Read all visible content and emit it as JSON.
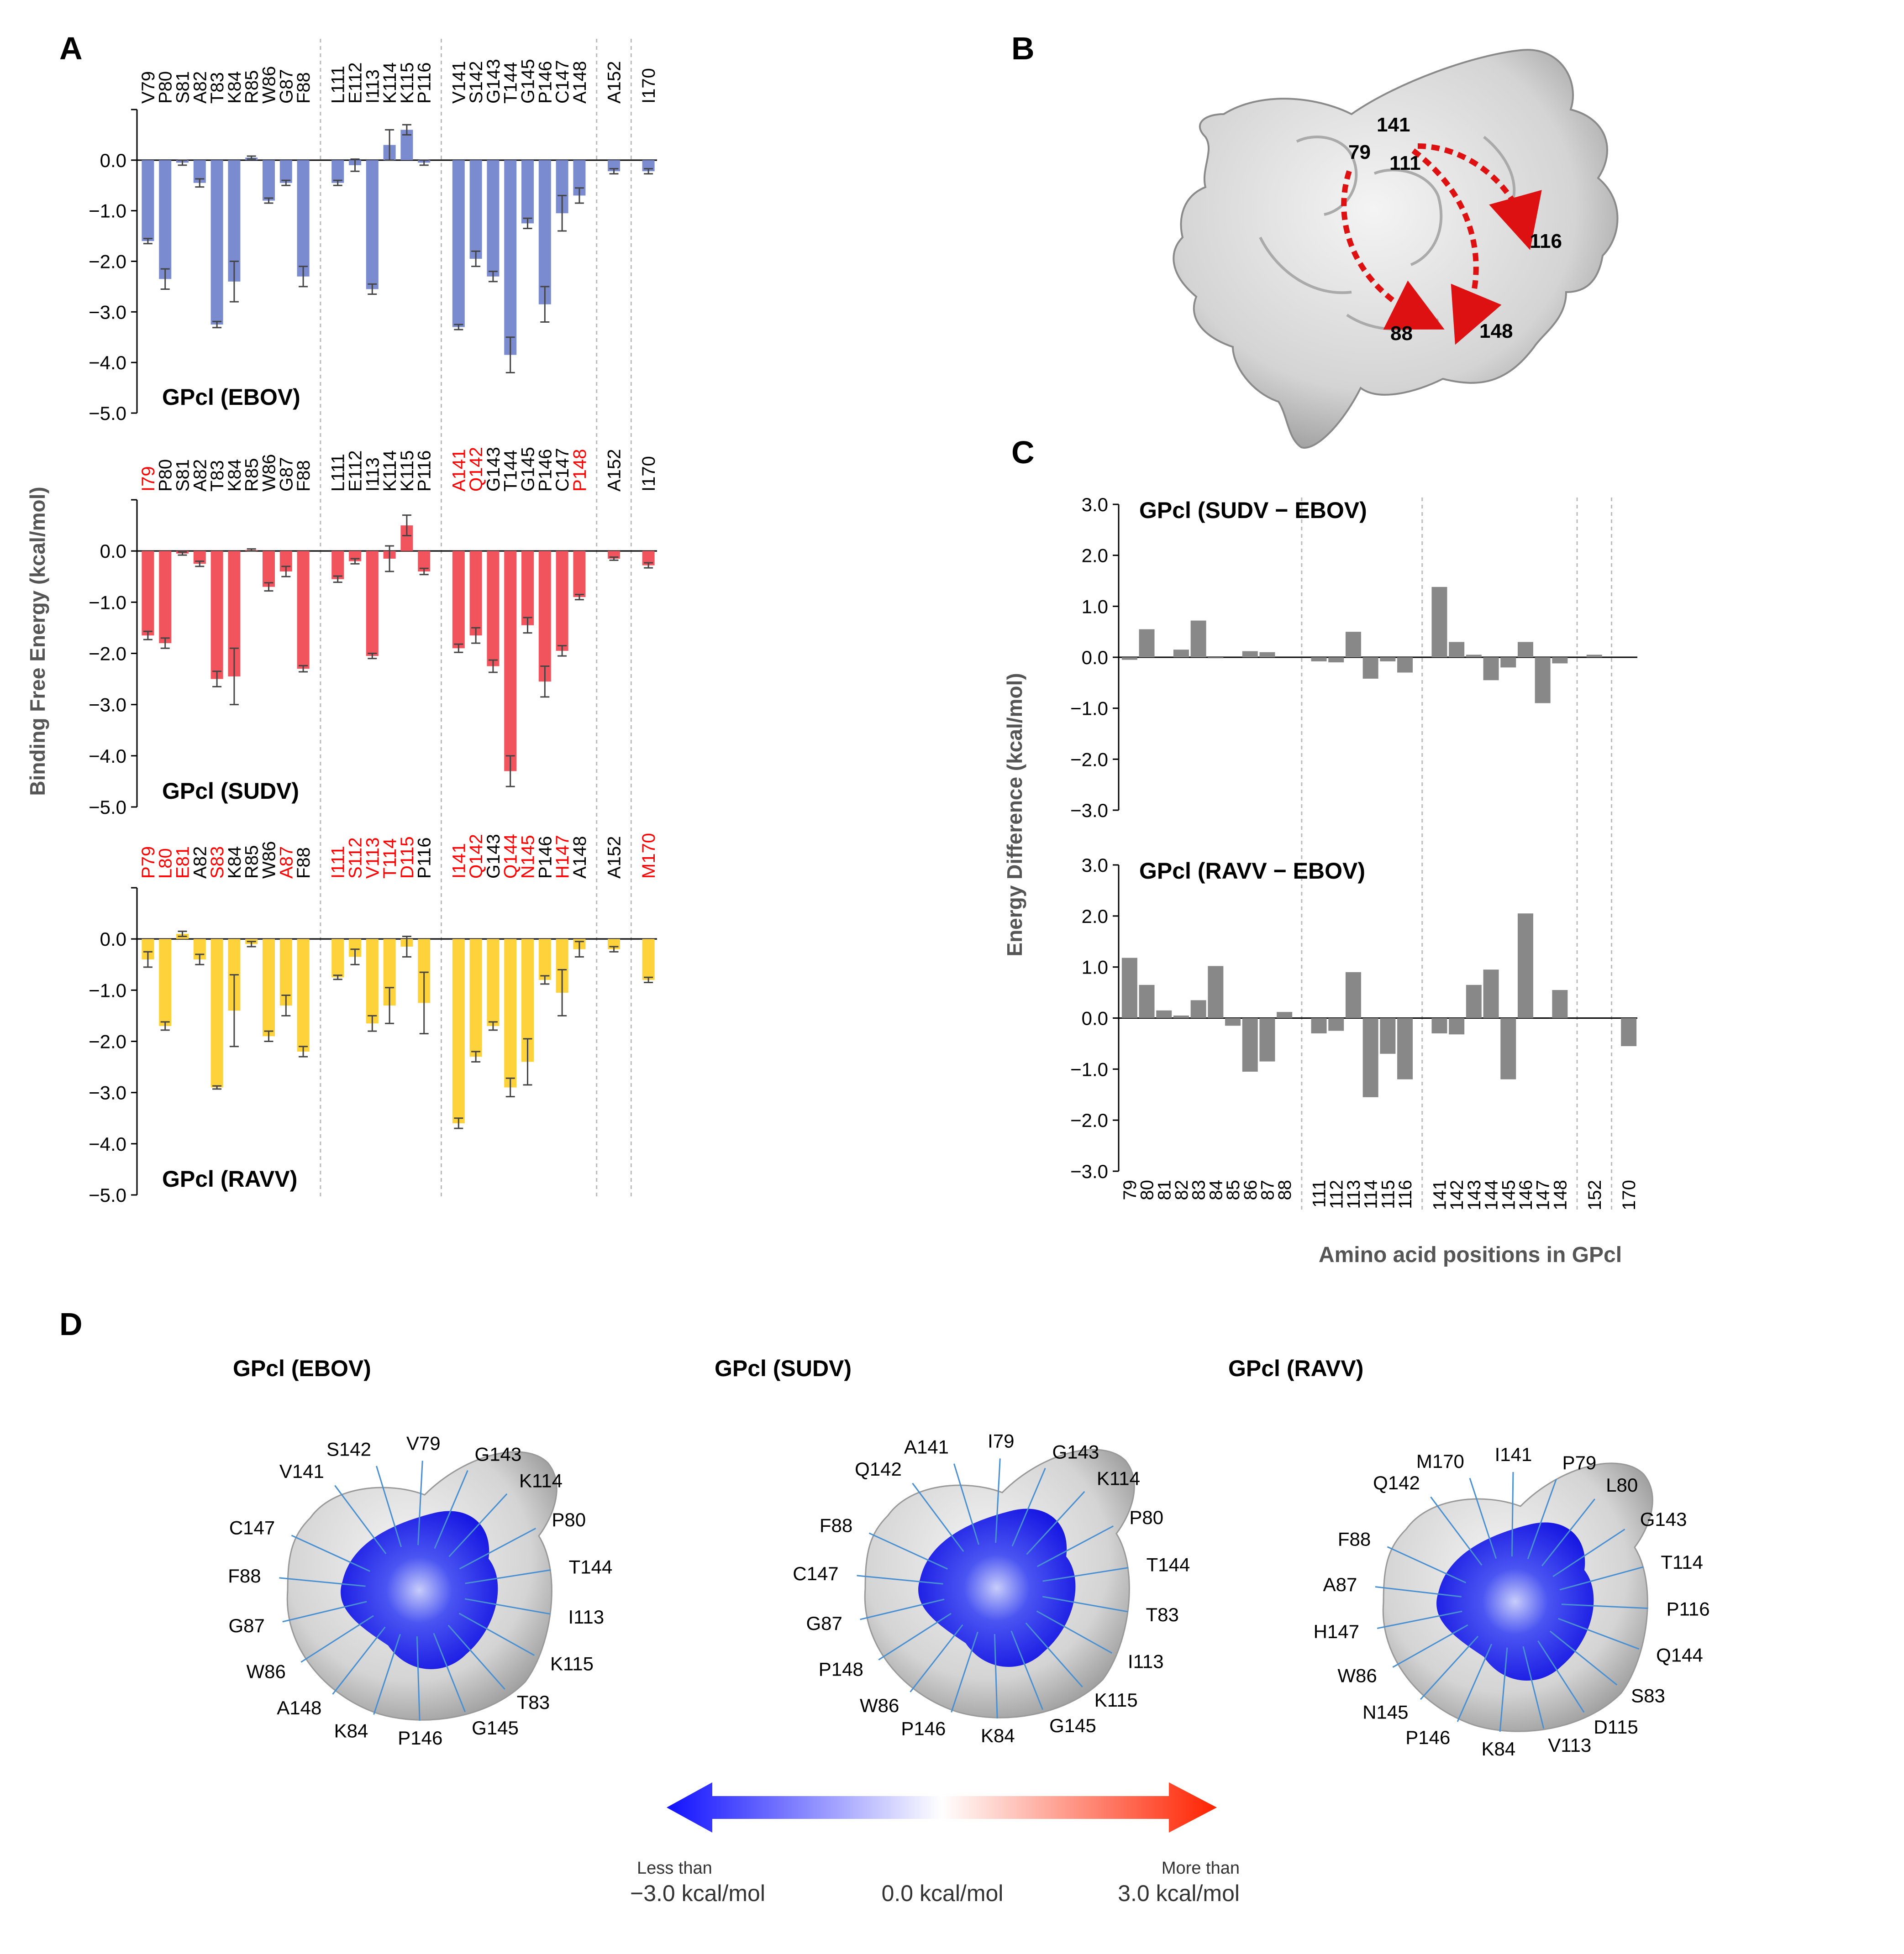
{
  "panels": {
    "A": "A",
    "B": "B",
    "C": "C",
    "D": "D"
  },
  "colors": {
    "ebov": "#7b8bd0",
    "sudv": "#f2545e",
    "ravv": "#fdd23a",
    "diff": "#888888",
    "mutated_label": "#ff0000",
    "normal_label": "#000000"
  },
  "chart_data": [
    {
      "type": "bar",
      "panel": "A",
      "ylabel": "Binding Free Energy (kcal/mol)",
      "ylim": [
        -5.0,
        1.0
      ],
      "yticks": [
        "0.0",
        "−1.0",
        "−2.0",
        "−3.0",
        "−4.0",
        "−5.0"
      ],
      "group_breaks_after": [
        8,
        14,
        22,
        23
      ],
      "series": [
        {
          "name": "GPcl (EBOV)",
          "color": "#7b8bd0",
          "labels": [
            "V79",
            "P80",
            "S81",
            "A82",
            "T83",
            "K84",
            "R85",
            "W86",
            "G87",
            "F88",
            "L111",
            "E112",
            "I113",
            "K114",
            "K115",
            "P116",
            "V141",
            "S142",
            "G143",
            "T144",
            "G145",
            "P146",
            "C147",
            "A148",
            "A152",
            "I170"
          ],
          "label_red": [
            false,
            false,
            false,
            false,
            false,
            false,
            false,
            false,
            false,
            false,
            false,
            false,
            false,
            false,
            false,
            false,
            false,
            false,
            false,
            false,
            false,
            false,
            false,
            false,
            false,
            false
          ],
          "values": [
            -1.6,
            -2.35,
            -0.05,
            -0.45,
            -3.25,
            -2.4,
            0.05,
            -0.8,
            -0.45,
            -2.3,
            -0.45,
            -0.1,
            -2.55,
            0.3,
            0.6,
            -0.05,
            -3.3,
            -1.95,
            -2.3,
            -3.85,
            -1.25,
            -2.85,
            -1.05,
            -0.7,
            -0.22,
            -0.22
          ],
          "errors": [
            0.05,
            0.2,
            0.05,
            0.08,
            0.06,
            0.4,
            0.03,
            0.05,
            0.05,
            0.2,
            0.05,
            0.12,
            0.1,
            0.3,
            0.1,
            0.05,
            0.05,
            0.15,
            0.1,
            0.35,
            0.1,
            0.35,
            0.35,
            0.15,
            0.05,
            0.05
          ]
        },
        {
          "name": "GPcl (SUDV)",
          "color": "#f2545e",
          "labels": [
            "I79",
            "P80",
            "S81",
            "A82",
            "T83",
            "K84",
            "R85",
            "W86",
            "G87",
            "F88",
            "L111",
            "E112",
            "I113",
            "K114",
            "K115",
            "P116",
            "A141",
            "Q142",
            "G143",
            "T144",
            "G145",
            "P146",
            "C147",
            "P148",
            "A152",
            "I170"
          ],
          "label_red": [
            true,
            false,
            false,
            false,
            false,
            false,
            false,
            false,
            false,
            false,
            false,
            false,
            false,
            false,
            false,
            false,
            true,
            true,
            false,
            false,
            false,
            false,
            false,
            true,
            false,
            false
          ],
          "values": [
            -1.65,
            -1.8,
            -0.05,
            -0.25,
            -2.5,
            -2.45,
            0.02,
            -0.7,
            -0.4,
            -2.3,
            -0.55,
            -0.2,
            -2.05,
            -0.15,
            0.5,
            -0.4,
            -1.9,
            -1.65,
            -2.25,
            -4.3,
            -1.45,
            -2.55,
            -1.95,
            -0.9,
            -0.15,
            -0.28
          ],
          "errors": [
            0.08,
            0.1,
            0.03,
            0.05,
            0.15,
            0.55,
            0.02,
            0.08,
            0.1,
            0.06,
            0.06,
            0.05,
            0.05,
            0.25,
            0.2,
            0.06,
            0.08,
            0.15,
            0.12,
            0.3,
            0.15,
            0.3,
            0.1,
            0.05,
            0.03,
            0.05
          ]
        },
        {
          "name": "GPcl (RAVV)",
          "color": "#fdd23a",
          "labels": [
            "P79",
            "L80",
            "E81",
            "A82",
            "S83",
            "K84",
            "R85",
            "W86",
            "A87",
            "F88",
            "I111",
            "S112",
            "V113",
            "T114",
            "D115",
            "P116",
            "I141",
            "Q142",
            "G143",
            "Q144",
            "N145",
            "P146",
            "H147",
            "A148",
            "A152",
            "M170"
          ],
          "label_red": [
            true,
            true,
            true,
            false,
            true,
            false,
            false,
            false,
            true,
            false,
            true,
            true,
            true,
            true,
            true,
            false,
            true,
            true,
            false,
            true,
            true,
            false,
            true,
            false,
            false,
            true
          ],
          "values": [
            -0.4,
            -1.7,
            0.1,
            -0.4,
            -2.9,
            -1.4,
            -0.1,
            -1.9,
            -1.3,
            -2.2,
            -0.75,
            -0.35,
            -1.65,
            -1.3,
            -0.15,
            -1.25,
            -3.6,
            -2.3,
            -1.7,
            -2.9,
            -2.4,
            -0.8,
            -1.05,
            -0.2,
            -0.2,
            -0.8
          ],
          "errors": [
            0.15,
            0.08,
            0.05,
            0.1,
            0.03,
            0.7,
            0.05,
            0.1,
            0.2,
            0.1,
            0.04,
            0.15,
            0.15,
            0.35,
            0.2,
            0.6,
            0.1,
            0.1,
            0.08,
            0.18,
            0.45,
            0.08,
            0.45,
            0.15,
            0.05,
            0.05
          ]
        }
      ]
    },
    {
      "type": "bar",
      "panel": "C",
      "ylabel": "Energy Difference (kcal/mol)",
      "xlabel": "Amino acid positions in GPcl",
      "ylim": [
        -3.0,
        3.0
      ],
      "yticks": [
        "3.0",
        "2.0",
        "1.0",
        "0.0",
        "−1.0",
        "−2.0",
        "−3.0"
      ],
      "categories": [
        "79",
        "80",
        "81",
        "82",
        "83",
        "84",
        "85",
        "86",
        "87",
        "88",
        "111",
        "112",
        "113",
        "114",
        "115",
        "116",
        "141",
        "142",
        "143",
        "144",
        "145",
        "146",
        "147",
        "148",
        "152",
        "170"
      ],
      "group_breaks_after": [
        9,
        15,
        23,
        24
      ],
      "series": [
        {
          "name": "GPcl (SUDV − EBOV)",
          "color": "#888888",
          "values": [
            -0.05,
            0.55,
            0.0,
            0.15,
            0.72,
            -0.02,
            0.0,
            0.12,
            0.1,
            0.0,
            -0.08,
            -0.1,
            0.5,
            -0.42,
            -0.08,
            -0.3,
            1.38,
            0.3,
            0.05,
            -0.45,
            -0.2,
            0.3,
            -0.9,
            -0.12,
            0.05,
            0.0
          ]
        },
        {
          "name": "GPcl (RAVV − EBOV)",
          "color": "#888888",
          "values": [
            1.18,
            0.65,
            0.15,
            0.05,
            0.35,
            1.02,
            -0.15,
            -1.05,
            -0.85,
            0.12,
            -0.3,
            -0.25,
            0.9,
            -1.55,
            -0.7,
            -1.2,
            -0.3,
            -0.32,
            0.65,
            0.95,
            -1.2,
            2.05,
            0.0,
            0.55,
            0.0,
            -0.55
          ]
        }
      ]
    }
  ],
  "panel_b": {
    "labels": [
      "141",
      "79",
      "111",
      "116",
      "88",
      "148"
    ]
  },
  "panel_d": {
    "structures": [
      {
        "title": "GPcl (EBOV)",
        "residues": [
          "V141",
          "S142",
          "V79",
          "G143",
          "K114",
          "P80",
          "T144",
          "I113",
          "K115",
          "T83",
          "G145",
          "P146",
          "K84",
          "A148",
          "W86",
          "G87",
          "F88",
          "C147"
        ]
      },
      {
        "title": "GPcl (SUDV)",
        "residues": [
          "Q142",
          "A141",
          "I79",
          "G143",
          "K114",
          "P80",
          "T144",
          "T83",
          "I113",
          "K115",
          "G145",
          "K84",
          "P146",
          "W86",
          "P148",
          "G87",
          "C147",
          "F88"
        ]
      },
      {
        "title": "GPcl (RAVV)",
        "residues": [
          "Q142",
          "M170",
          "I141",
          "P79",
          "L80",
          "G143",
          "T114",
          "P116",
          "Q144",
          "S83",
          "D115",
          "V113",
          "K84",
          "P146",
          "N145",
          "W86",
          "H147",
          "A87",
          "F88"
        ]
      }
    ],
    "legend": {
      "left_line1": "Less than",
      "left_line2": "−3.0 kcal/mol",
      "center": "0.0 kcal/mol",
      "right_line1": "More than",
      "right_line2": "3.0 kcal/mol"
    }
  }
}
